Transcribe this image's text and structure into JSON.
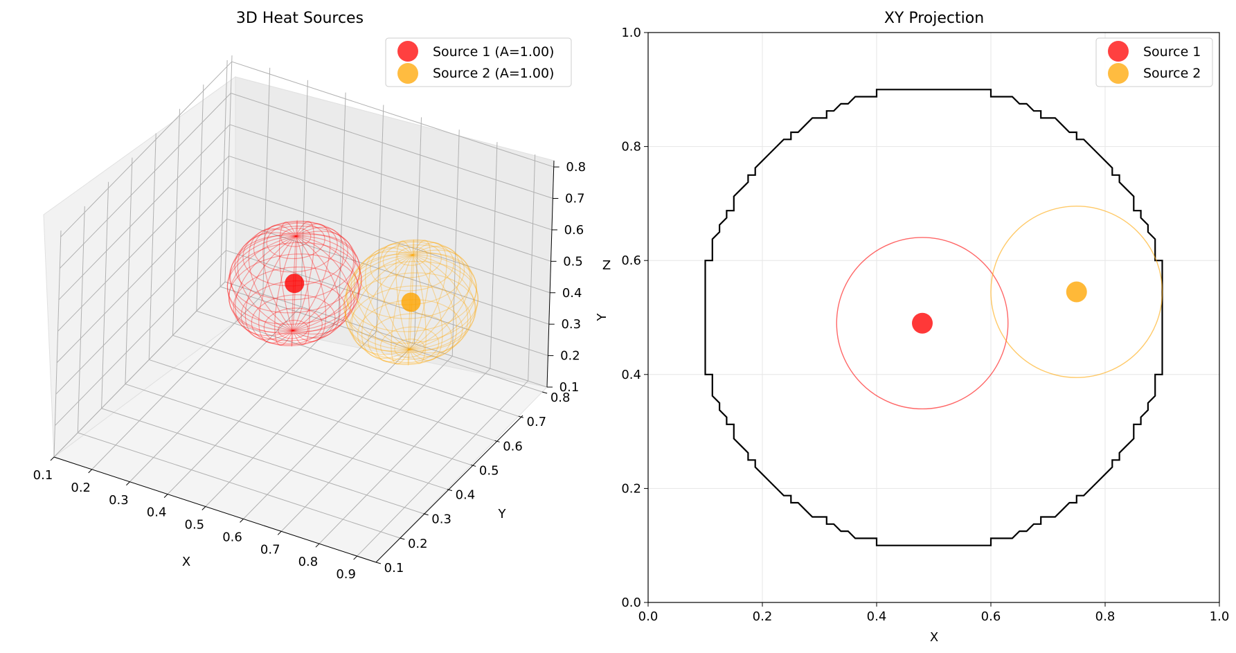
{
  "colors": {
    "source1": "#ff0000",
    "source2": "#ffa500",
    "boundary": "#000000",
    "grid3d": "#b0b0b0",
    "pane": "#f2f2f2"
  },
  "chart_data": [
    {
      "type": "scatter",
      "projection": "3d",
      "title": "3D Heat Sources",
      "xlabel": "X",
      "ylabel": "Y",
      "zlabel": "Z",
      "xticks": [
        "0.1",
        "0.2",
        "0.3",
        "0.4",
        "0.5",
        "0.6",
        "0.7",
        "0.8",
        "0.9"
      ],
      "yticks": [
        "0.1",
        "0.2",
        "0.3",
        "0.4",
        "0.5",
        "0.6",
        "0.7",
        "0.8"
      ],
      "zticks": [
        "0.1",
        "0.2",
        "0.3",
        "0.4",
        "0.5",
        "0.6",
        "0.7",
        "0.8"
      ],
      "grid": true,
      "legend": "top-right",
      "series": [
        {
          "name": "Source 1 (A=1.00)",
          "color": "#ff0000",
          "center": [
            0.48,
            0.49,
            0.5
          ],
          "radius": 0.15
        },
        {
          "name": "Source 2 (A=1.00)",
          "color": "#ffa500",
          "center": [
            0.75,
            0.55,
            0.5
          ],
          "radius": 0.15
        }
      ]
    },
    {
      "type": "scatter",
      "title": "XY Projection",
      "xlabel": "X",
      "ylabel": "Y",
      "xlim": [
        0,
        1
      ],
      "ylim": [
        0,
        1
      ],
      "xticks": [
        "0.0",
        "0.2",
        "0.4",
        "0.6",
        "0.8",
        "1.0"
      ],
      "yticks": [
        "0.0",
        "0.2",
        "0.4",
        "0.6",
        "0.8",
        "1.0"
      ],
      "grid": true,
      "legend": "top-right",
      "series": [
        {
          "name": "Source 1",
          "color": "#ff0000",
          "x": [
            0.48
          ],
          "y": [
            0.49
          ],
          "radius": 0.15
        },
        {
          "name": "Source 2",
          "color": "#ffa500",
          "x": [
            0.75
          ],
          "y": [
            0.545
          ],
          "radius": 0.15
        }
      ],
      "boundary": {
        "center": [
          0.5,
          0.5
        ],
        "radius": 0.405
      }
    }
  ]
}
